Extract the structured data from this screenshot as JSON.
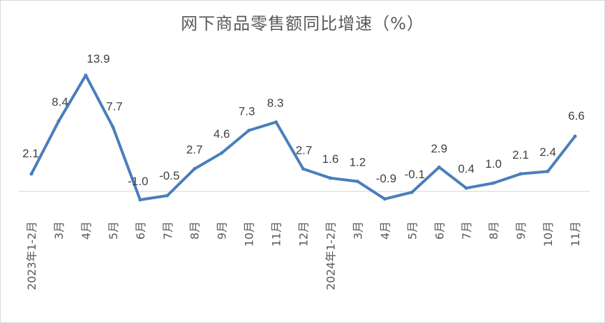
{
  "chart_data": {
    "type": "line",
    "title": "网下商品零售额同比增速（%）",
    "xlabel": "",
    "ylabel": "",
    "categories": [
      "2023年1-2月",
      "3月",
      "4月",
      "5月",
      "6月",
      "7月",
      "8月",
      "9月",
      "10月",
      "11月",
      "12月",
      "2024年1-2月",
      "3月",
      "4月",
      "5月",
      "6月",
      "7月",
      "8月",
      "9月",
      "10月",
      "11月"
    ],
    "series": [
      {
        "name": "",
        "values": [
          2.1,
          8.4,
          13.9,
          7.7,
          -1.0,
          -0.5,
          2.7,
          4.6,
          7.3,
          8.3,
          2.7,
          1.6,
          1.2,
          -0.9,
          -0.1,
          2.9,
          0.4,
          1.0,
          2.1,
          2.4,
          6.6
        ],
        "labels": [
          "2.1",
          "8.4",
          "13.9",
          "7.7",
          "-1.0",
          "-0.5",
          "2.7",
          "4.6",
          "7.3",
          "8.3",
          "2.7",
          "1.6",
          "1.2",
          "-0.9",
          "-0.1",
          "2.9",
          "0.4",
          "1.0",
          "2.1",
          "2.4",
          "6.6"
        ]
      }
    ],
    "grid": false,
    "legend": "none",
    "line_color": "#4a7ebb",
    "axis_color": "#d9d9d9"
  }
}
